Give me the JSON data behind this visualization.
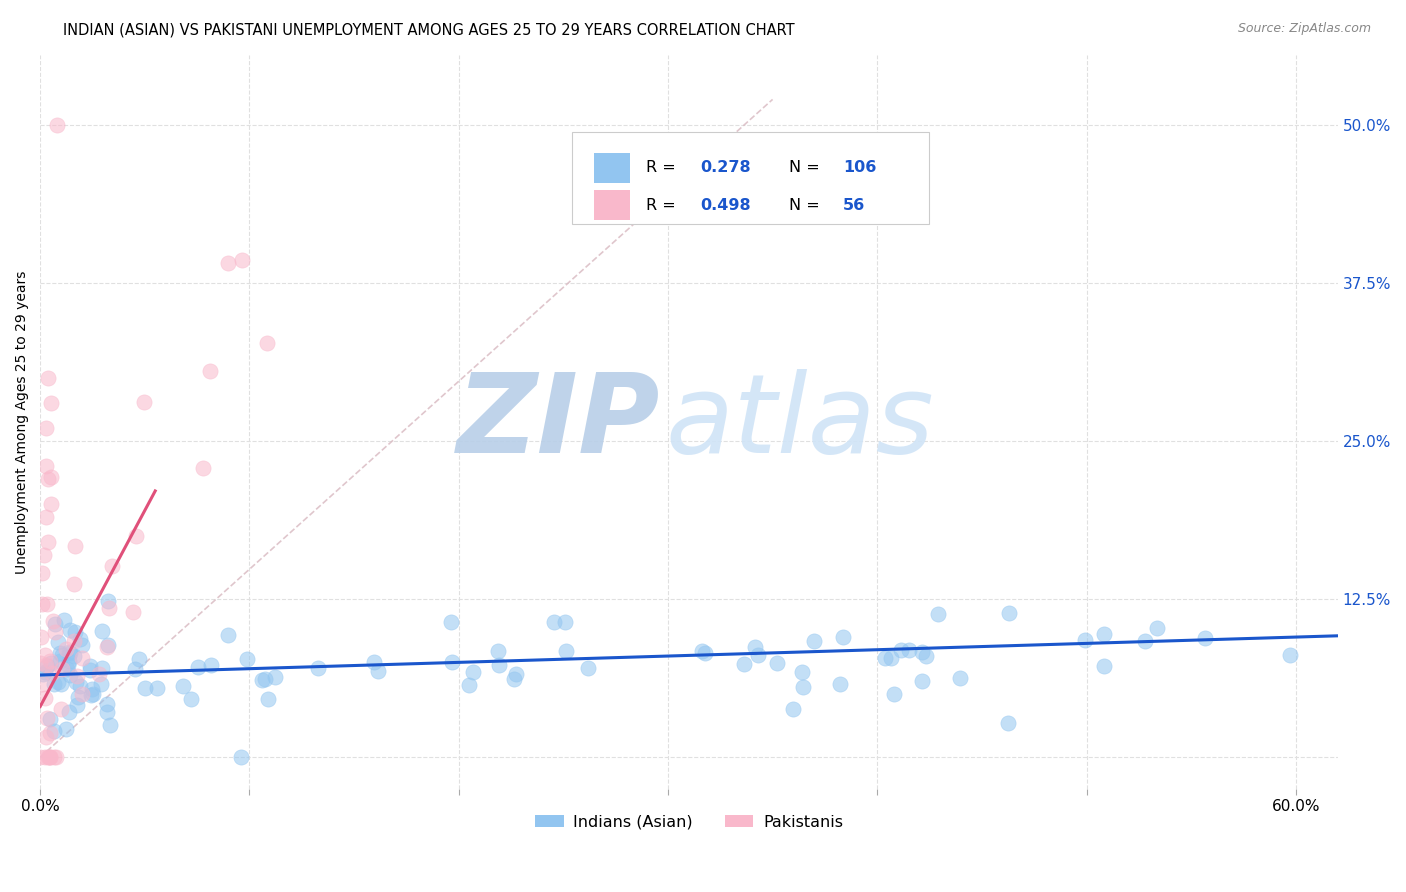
{
  "title": "INDIAN (ASIAN) VS PAKISTANI UNEMPLOYMENT AMONG AGES 25 TO 29 YEARS CORRELATION CHART",
  "source": "Source: ZipAtlas.com",
  "ylabel": "Unemployment Among Ages 25 to 29 years",
  "xlim": [
    0.0,
    0.62
  ],
  "ylim": [
    -0.025,
    0.555
  ],
  "xticks": [
    0.0,
    0.1,
    0.2,
    0.3,
    0.4,
    0.5,
    0.6
  ],
  "xtick_labels": [
    "0.0%",
    "",
    "",
    "",
    "",
    "",
    "60.0%"
  ],
  "ytick_labels_right": [
    "50.0%",
    "37.5%",
    "25.0%",
    "12.5%",
    ""
  ],
  "ytick_vals_right": [
    0.5,
    0.375,
    0.25,
    0.125,
    0.0
  ],
  "legend_R_indian": "0.278",
  "legend_N_indian": "106",
  "legend_R_pakistani": "0.498",
  "legend_N_pakistani": "56",
  "indian_color": "#92c5f0",
  "pakistani_color": "#f9b8cb",
  "trendline_indian_color": "#1a56cc",
  "trendline_pakistani_color": "#e0507a",
  "trendline_diagonal_color": "#d8b8c0",
  "watermark_zip": "ZIP",
  "watermark_atlas": "atlas",
  "watermark_color": "#d0e4f7",
  "background_color": "#ffffff",
  "grid_color": "#e0e0e0",
  "grid_style": "--",
  "title_fontsize": 10.5,
  "axis_fontsize": 11,
  "source_color": "#888888"
}
